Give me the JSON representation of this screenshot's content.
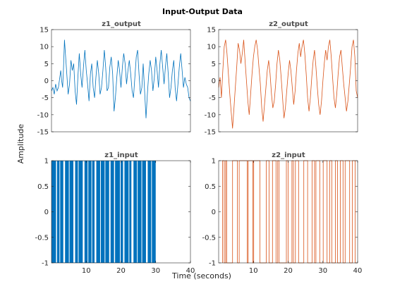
{
  "chart_data": {
    "type": "line",
    "title": "Input-Output Data",
    "xlabel": "Time (seconds)",
    "ylabel": "Amplitude",
    "grid": false,
    "colors": {
      "z1": "#0072bd",
      "z2": "#d95319",
      "axis": "#262626",
      "subtitle": "#4d4d4d"
    },
    "panels": [
      {
        "id": "z1_output",
        "title": "z1_output",
        "signal": "z1",
        "kind": "line",
        "xlim": [
          0,
          30
        ],
        "ylim": [
          -15,
          15
        ],
        "yticks": [
          "15",
          "10",
          "5",
          "0",
          "-5",
          "-10",
          "-15"
        ],
        "x": [
          0.0,
          0.3,
          0.6,
          0.9,
          1.2,
          1.5,
          1.8,
          2.0,
          2.2,
          2.4,
          2.6,
          2.8,
          3.0,
          3.3,
          3.6,
          3.9,
          4.2,
          4.5,
          4.8,
          5.1,
          5.4,
          5.7,
          6.0,
          6.3,
          6.6,
          6.9,
          7.2,
          7.5,
          7.8,
          8.1,
          8.4,
          8.7,
          9.0,
          9.3,
          9.6,
          9.9,
          10.2,
          10.5,
          10.8,
          11.1,
          11.4,
          11.7,
          12.0,
          12.3,
          12.6,
          12.9,
          13.2,
          13.5,
          13.8,
          14.1,
          14.4,
          14.7,
          15.0,
          15.3,
          15.6,
          15.9,
          16.2,
          16.5,
          16.8,
          17.1,
          17.4,
          17.7,
          18.0,
          18.3,
          18.6,
          18.9,
          19.2,
          19.5,
          19.8,
          20.1,
          20.4,
          20.7,
          21.0,
          21.3,
          21.6,
          21.9,
          22.2,
          22.5,
          22.8,
          23.1,
          23.4,
          23.7,
          24.0,
          24.3,
          24.6,
          24.9,
          25.2,
          25.5,
          25.8,
          26.1,
          26.4,
          26.7,
          27.0,
          27.3,
          27.6,
          27.9,
          28.2,
          28.5,
          28.8,
          29.1,
          29.4,
          29.7,
          30.0
        ],
        "y": [
          -3,
          -2,
          -4,
          -1,
          -3,
          -2,
          1,
          3,
          0,
          -2,
          4,
          12,
          8,
          2,
          -4,
          -1,
          6,
          3,
          5,
          -3,
          -7,
          1,
          8,
          2,
          -2,
          4,
          9,
          3,
          -1,
          -6,
          2,
          5,
          -2,
          -5,
          1,
          6,
          2,
          -4,
          -2,
          3,
          9,
          4,
          -3,
          -2,
          4,
          7,
          2,
          -9,
          -5,
          1,
          6,
          3,
          -2,
          4,
          8,
          5,
          -1,
          3,
          6,
          2,
          -3,
          -5,
          1,
          7,
          9,
          2,
          -4,
          -2,
          5,
          -3,
          -11,
          -4,
          2,
          6,
          3,
          -3,
          1,
          7,
          3,
          -2,
          5,
          9,
          4,
          -1,
          4,
          8,
          2,
          -5,
          -2,
          3,
          6,
          -2,
          -6,
          -1,
          4,
          8,
          3,
          -2,
          1,
          -1,
          -2,
          -5,
          -6
        ]
      },
      {
        "id": "z2_output",
        "title": "z2_output",
        "signal": "z2",
        "kind": "line",
        "xlim": [
          0,
          40
        ],
        "ylim": [
          -15,
          15
        ],
        "yticks": [
          "15",
          "10",
          "5",
          "0",
          "-5",
          "-10",
          "-15"
        ],
        "x": [
          0.0,
          0.4,
          0.8,
          1.2,
          1.6,
          2.0,
          2.4,
          2.8,
          3.2,
          3.6,
          4.0,
          4.4,
          4.8,
          5.2,
          5.6,
          6.0,
          6.4,
          6.8,
          7.2,
          7.6,
          8.0,
          8.4,
          8.8,
          9.2,
          9.6,
          10.0,
          10.4,
          10.8,
          11.2,
          11.6,
          12.0,
          12.4,
          12.8,
          13.2,
          13.6,
          14.0,
          14.4,
          14.8,
          15.2,
          15.6,
          16.0,
          16.4,
          16.8,
          17.2,
          17.6,
          18.0,
          18.4,
          18.8,
          19.2,
          19.6,
          20.0,
          20.4,
          20.8,
          21.2,
          21.6,
          22.0,
          22.4,
          22.8,
          23.2,
          23.6,
          24.0,
          24.4,
          24.8,
          25.2,
          25.6,
          26.0,
          26.4,
          26.8,
          27.2,
          27.6,
          28.0,
          28.4,
          28.8,
          29.2,
          29.6,
          30.0,
          30.4,
          30.8,
          31.2,
          31.6,
          32.0,
          32.4,
          32.8,
          33.2,
          33.6,
          34.0,
          34.4,
          34.8,
          35.2,
          35.6,
          36.0,
          36.4,
          36.8,
          37.2,
          37.6,
          38.0,
          38.4,
          38.8,
          39.2,
          39.6,
          40.0
        ],
        "y": [
          -2,
          1,
          -5,
          3,
          10,
          12,
          8,
          2,
          -4,
          -9,
          -14,
          -8,
          -2,
          4,
          11,
          9,
          5,
          8,
          12,
          6,
          0,
          -6,
          -10,
          -4,
          2,
          7,
          10,
          12,
          9,
          4,
          -1,
          -8,
          -12,
          -7,
          -2,
          3,
          6,
          2,
          -4,
          -8,
          -6,
          -1,
          5,
          9,
          6,
          1,
          -5,
          -11,
          -8,
          -3,
          2,
          6,
          3,
          -2,
          -7,
          -3,
          3,
          8,
          11,
          7,
          10,
          12,
          8,
          2,
          -5,
          -9,
          -5,
          1,
          6,
          9,
          4,
          -2,
          -7,
          -10,
          -6,
          0,
          5,
          9,
          6,
          10,
          12,
          7,
          1,
          -5,
          -8,
          -4,
          2,
          7,
          9,
          4,
          -1,
          -5,
          -9,
          -6,
          -1,
          4,
          10,
          12,
          7,
          -3,
          -5
        ]
      },
      {
        "id": "z1_input",
        "title": "z1_input",
        "signal": "z1",
        "kind": "binary-fill",
        "xlim": [
          0,
          40
        ],
        "ylim": [
          -1,
          1
        ],
        "yticks": [
          "1",
          "0.5",
          "0",
          "-0.5",
          "-1"
        ],
        "xticks": [
          "10",
          "20",
          "30",
          "40"
        ],
        "end": 30,
        "gaps": [
          [
            1.3,
            1.6
          ],
          [
            2.3,
            2.5
          ],
          [
            3.4,
            3.9
          ],
          [
            5.0,
            5.2
          ],
          [
            6.3,
            6.8
          ],
          [
            7.6,
            7.8
          ],
          [
            9.0,
            9.5
          ],
          [
            10.4,
            10.6
          ],
          [
            11.5,
            11.7
          ],
          [
            12.4,
            12.9
          ],
          [
            14.0,
            14.2
          ],
          [
            15.3,
            15.5
          ],
          [
            16.6,
            17.0
          ],
          [
            18.0,
            18.3
          ],
          [
            19.7,
            19.9
          ],
          [
            20.6,
            21.0
          ],
          [
            22.2,
            22.4
          ],
          [
            23.0,
            23.6
          ],
          [
            24.6,
            24.8
          ],
          [
            25.9,
            26.1
          ],
          [
            27.2,
            27.7
          ],
          [
            28.7,
            28.9
          ]
        ]
      },
      {
        "id": "z2_input",
        "title": "z2_input",
        "signal": "z2",
        "kind": "binary-stairs",
        "xlim": [
          0,
          40
        ],
        "ylim": [
          -1,
          1
        ],
        "yticks": [
          "1",
          "0.5",
          "0",
          "-0.5",
          "-1"
        ],
        "xticks": [
          "10",
          "20",
          "30",
          "40"
        ],
        "start": 1.1,
        "end": 40,
        "switches": [
          1.6,
          2.0,
          2.3,
          4.0,
          5.4,
          5.9,
          8.2,
          8.5,
          9.8,
          10.1,
          11.9,
          13.7,
          14.5,
          15.5,
          16.5,
          17.0,
          17.4,
          19.5,
          20.0,
          21.1,
          21.5,
          22.1,
          23.0,
          24.5,
          25.6,
          26.9,
          27.6,
          28.0,
          29.1,
          30.1,
          31.2,
          32.0,
          32.6,
          33.6,
          34.2,
          35.0,
          35.8,
          36.4,
          37.7,
          38.5,
          39.3
        ]
      }
    ]
  }
}
